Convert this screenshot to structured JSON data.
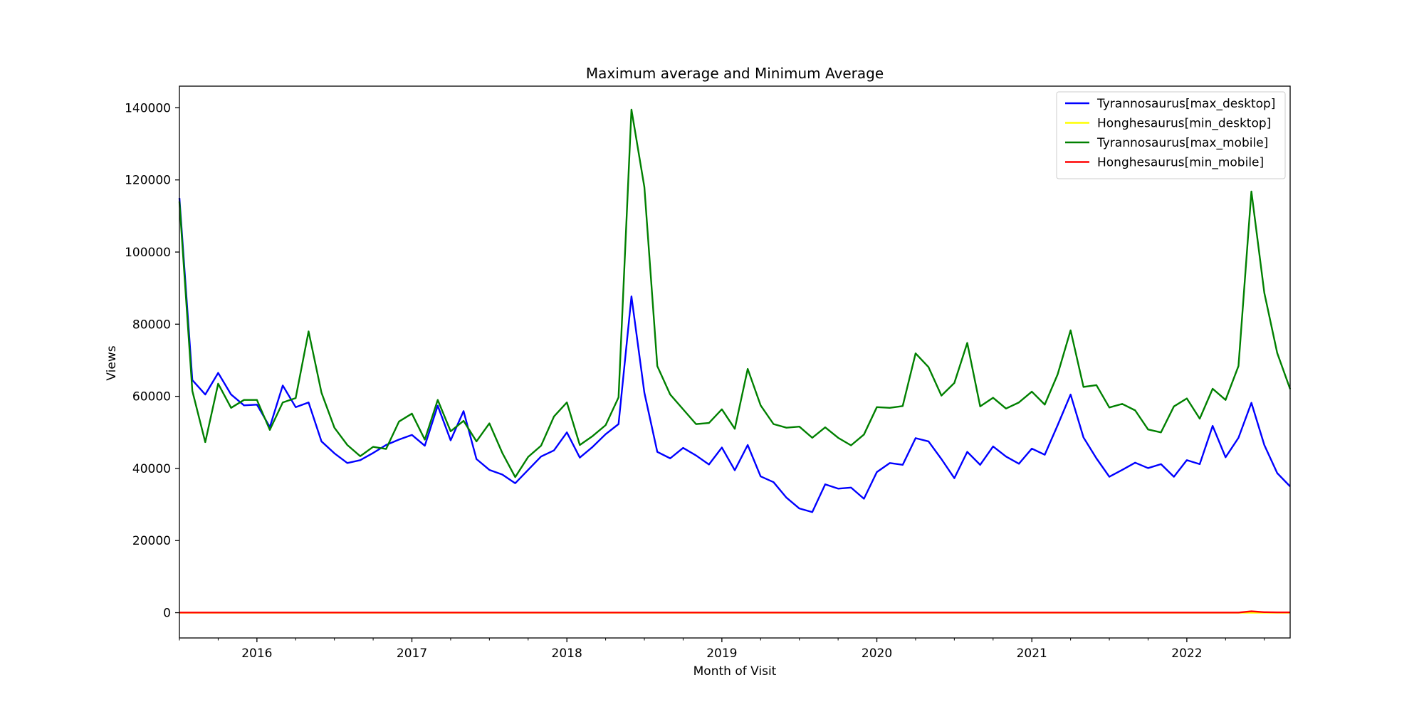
{
  "chart_data": {
    "type": "line",
    "title": "Maximum average and Minimum Average",
    "xlabel": "Month of Visit",
    "ylabel": "Views",
    "x_start": "2015-07",
    "x_end": "2022-09",
    "xlim": [
      "2015-07",
      "2022-09"
    ],
    "ylim": [
      -7000,
      146000
    ],
    "y_ticks": [
      0,
      20000,
      40000,
      60000,
      80000,
      100000,
      120000,
      140000
    ],
    "x_ticks": [
      {
        "date": "2016-01",
        "label": "2016"
      },
      {
        "date": "2017-01",
        "label": "2017"
      },
      {
        "date": "2018-01",
        "label": "2018"
      },
      {
        "date": "2019-01",
        "label": "2019"
      },
      {
        "date": "2020-01",
        "label": "2020"
      },
      {
        "date": "2021-01",
        "label": "2021"
      },
      {
        "date": "2022-01",
        "label": "2022"
      }
    ],
    "grid": false,
    "legend_position": "top-right",
    "series": [
      {
        "name": "Tyrannosaurus[max_desktop]",
        "color": "#0000ff",
        "values": [
          115000,
          64500,
          60500,
          66500,
          60500,
          57500,
          57700,
          51500,
          63000,
          57000,
          58300,
          47500,
          44200,
          41500,
          42300,
          44300,
          46500,
          48000,
          49300,
          46300,
          57400,
          47800,
          55900,
          42600,
          39600,
          38300,
          35900,
          39600,
          43300,
          45000,
          50000,
          43000,
          46000,
          49500,
          52300,
          87700,
          61000,
          44600,
          42800,
          45700,
          43600,
          41100,
          45800,
          39500,
          46500,
          37800,
          36200,
          31900,
          28900,
          27900,
          35600,
          34400,
          34700,
          31600,
          39000,
          41500,
          41000,
          48400,
          47500,
          42600,
          37300,
          44600,
          41000,
          46100,
          43300,
          41300,
          45500,
          43800,
          52000,
          60500,
          48600,
          42800,
          37700,
          39600,
          41600,
          40100,
          41200,
          37700,
          42300,
          41200,
          51800,
          43100,
          48500,
          58200,
          46500,
          38700,
          35000
        ]
      },
      {
        "name": "Honghesaurus[min_desktop]",
        "color": "#ffff00",
        "values": [
          0,
          0,
          0,
          0,
          0,
          0,
          0,
          0,
          0,
          0,
          0,
          0,
          0,
          0,
          0,
          0,
          0,
          0,
          0,
          0,
          0,
          0,
          0,
          0,
          0,
          0,
          0,
          0,
          0,
          0,
          0,
          0,
          0,
          0,
          0,
          0,
          0,
          0,
          0,
          0,
          0,
          0,
          0,
          0,
          0,
          0,
          0,
          0,
          0,
          0,
          0,
          0,
          0,
          0,
          0,
          0,
          0,
          0,
          0,
          0,
          0,
          0,
          0,
          0,
          0,
          0,
          0,
          0,
          0,
          0,
          0,
          0,
          0,
          0,
          0,
          0,
          0,
          0,
          0,
          0,
          0,
          0,
          0,
          0,
          0,
          0,
          0
        ]
      },
      {
        "name": "Tyrannosaurus[max_mobile]",
        "color": "#008000",
        "values": [
          114000,
          61500,
          47300,
          63500,
          56800,
          59000,
          59000,
          50700,
          58300,
          59500,
          78000,
          61000,
          51300,
          46500,
          43400,
          46000,
          45400,
          53000,
          55200,
          48000,
          59000,
          50300,
          53200,
          47500,
          52500,
          44300,
          37600,
          43200,
          46300,
          54400,
          58300,
          46500,
          49000,
          52000,
          59700,
          139500,
          118000,
          68400,
          60500,
          56400,
          52300,
          52600,
          56400,
          51000,
          67600,
          57500,
          52300,
          51300,
          51600,
          48500,
          51400,
          48500,
          46400,
          49400,
          57000,
          56800,
          57300,
          71900,
          68100,
          60200,
          63700,
          74800,
          57200,
          59600,
          56600,
          58300,
          61300,
          57700,
          66100,
          78300,
          62600,
          63100,
          56900,
          57900,
          56100,
          50800,
          50000,
          57200,
          59400,
          53800,
          62100,
          59000,
          68400,
          116800,
          88700,
          72000,
          62000
        ]
      },
      {
        "name": "Honghesaurus[min_mobile]",
        "color": "#ff0000",
        "values": [
          50,
          50,
          50,
          50,
          50,
          50,
          50,
          50,
          50,
          50,
          50,
          50,
          50,
          50,
          50,
          50,
          50,
          50,
          50,
          50,
          50,
          50,
          50,
          50,
          50,
          50,
          50,
          50,
          50,
          50,
          50,
          50,
          50,
          50,
          50,
          50,
          50,
          50,
          50,
          50,
          50,
          50,
          50,
          50,
          50,
          50,
          50,
          50,
          50,
          50,
          50,
          50,
          50,
          50,
          50,
          50,
          50,
          50,
          50,
          50,
          50,
          50,
          50,
          50,
          50,
          50,
          50,
          50,
          50,
          50,
          50,
          50,
          50,
          50,
          50,
          50,
          50,
          50,
          50,
          50,
          50,
          50,
          50,
          400,
          150,
          100,
          100
        ]
      }
    ]
  }
}
